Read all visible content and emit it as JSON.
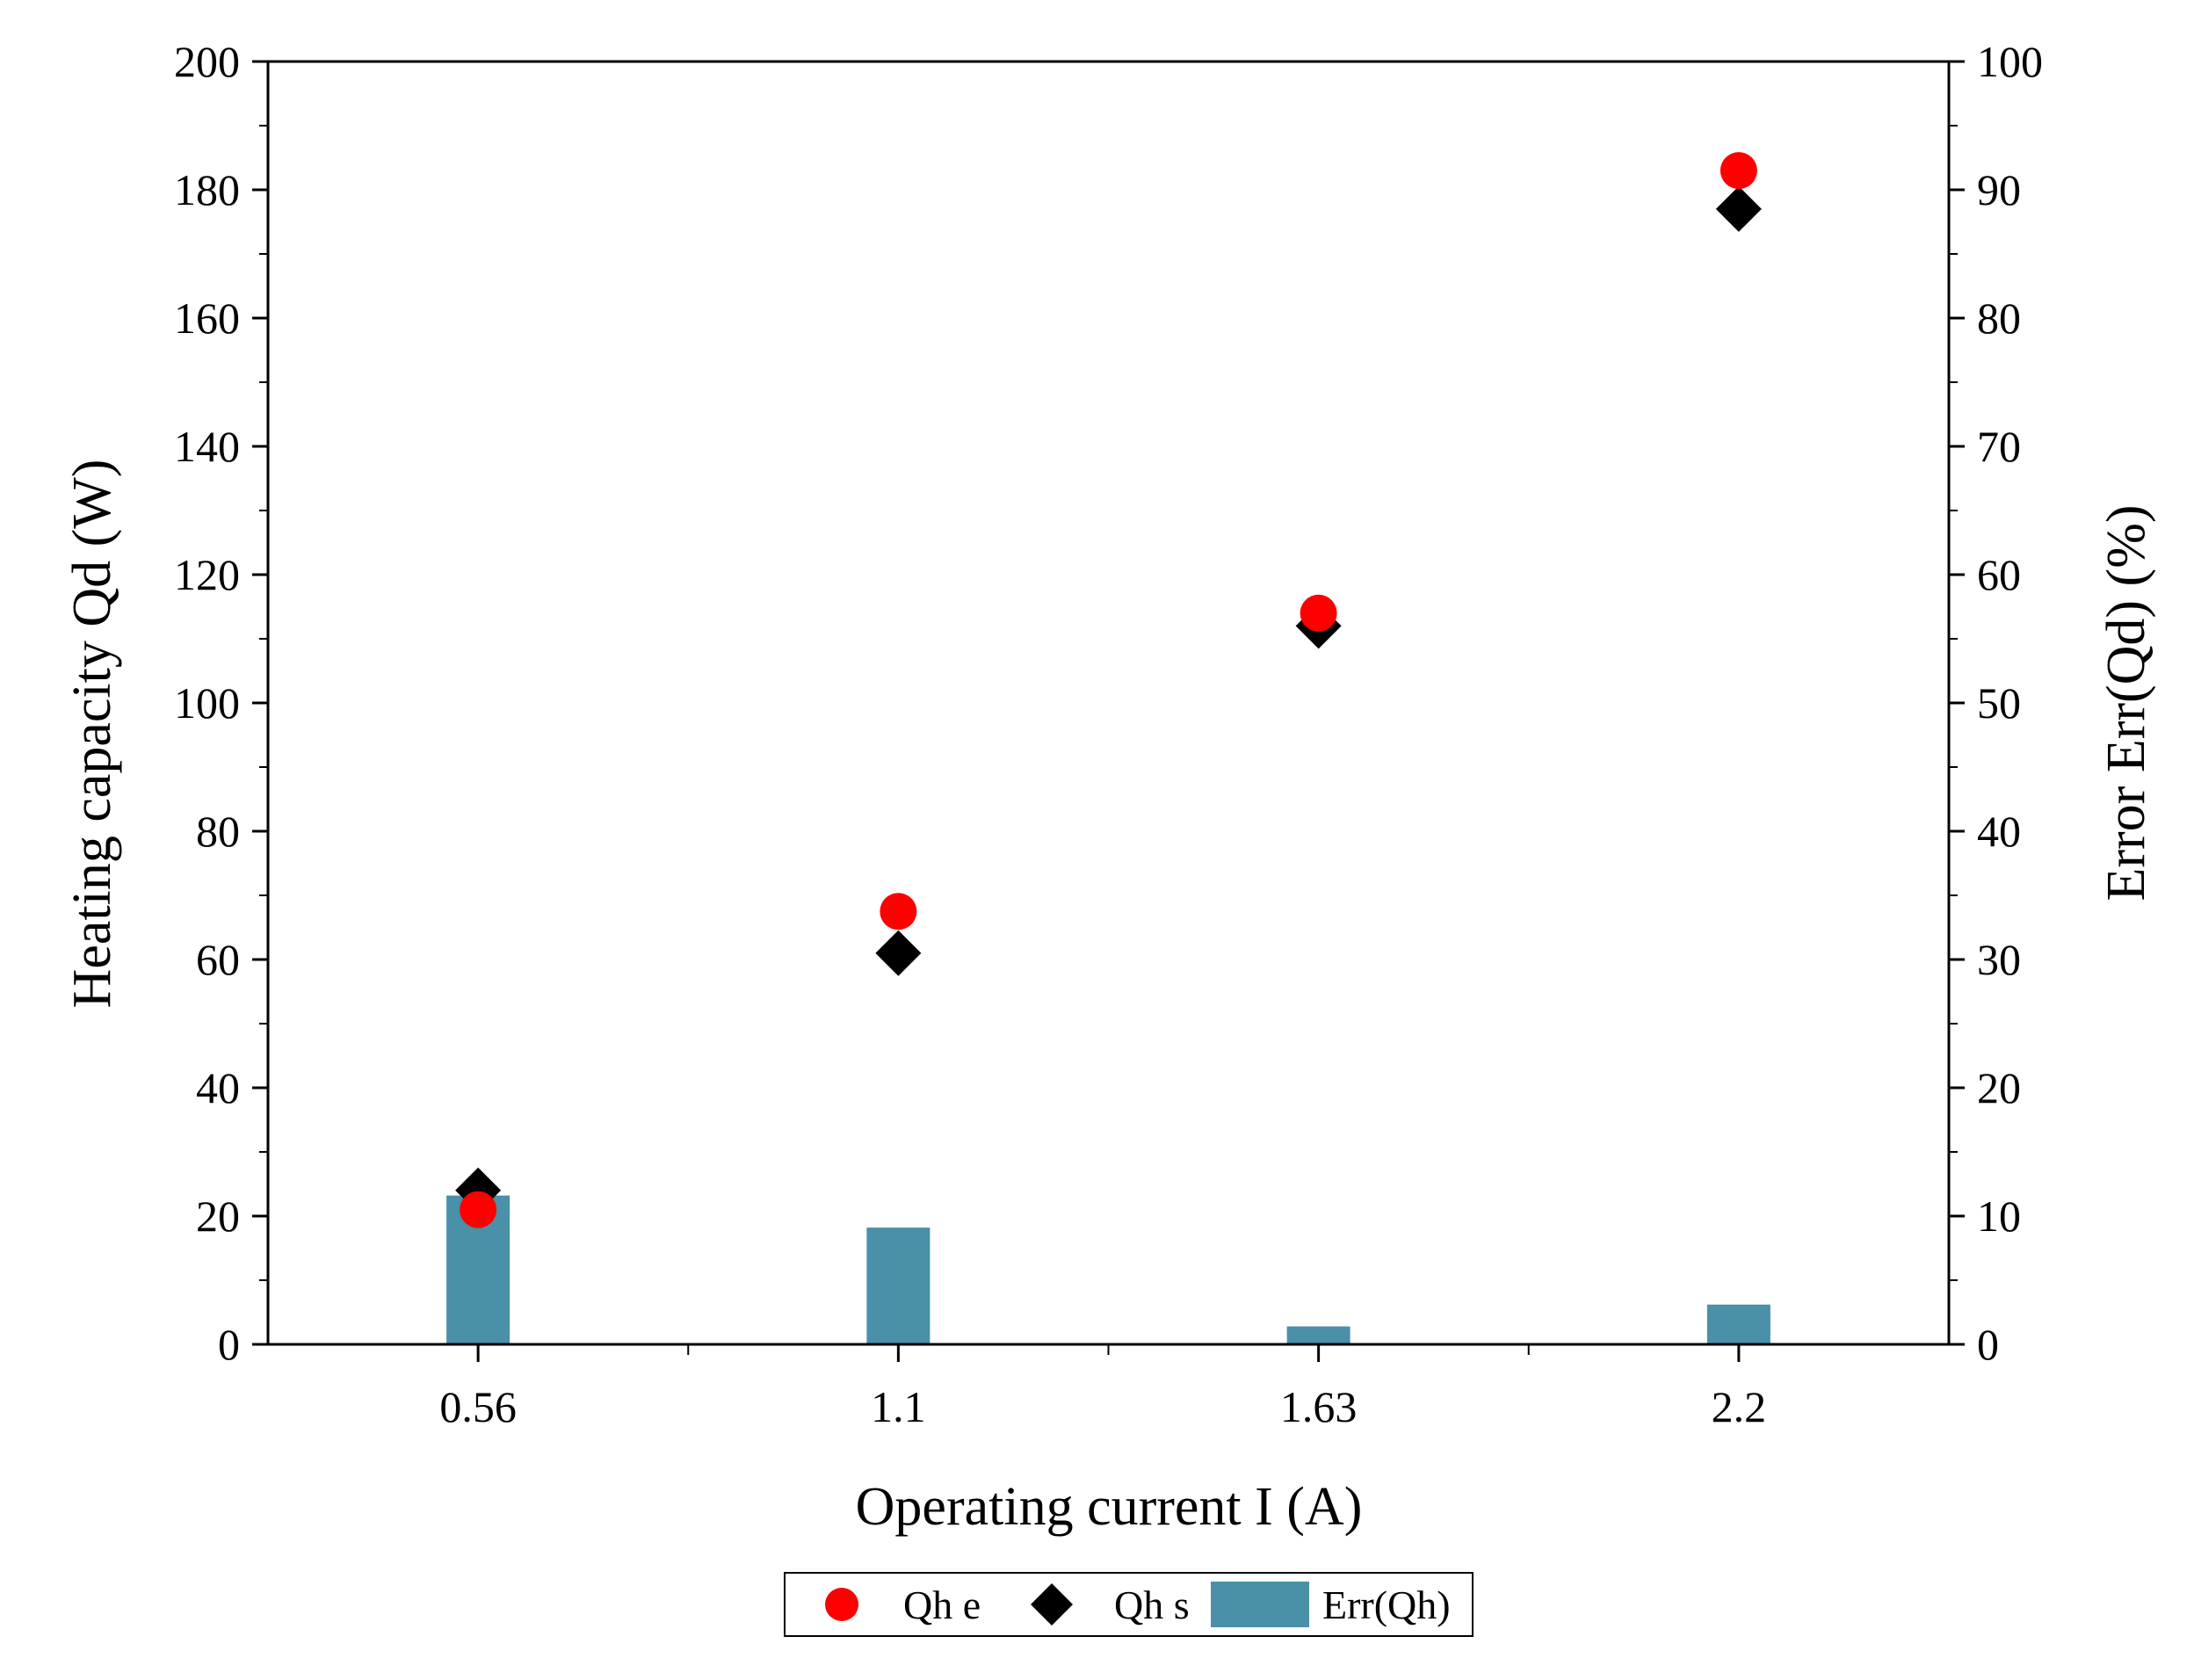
{
  "chart_data": {
    "type": "scatter",
    "categories": [
      "0.56",
      "1.1",
      "1.63",
      "2.2"
    ],
    "xlabel": "Operating current I (A)",
    "ylabel": "Heating capacity Qd (W)",
    "y2label": "Error Err(Qd) (%)",
    "ylim": [
      0,
      200
    ],
    "y2lim": [
      0,
      100
    ],
    "yticks": [
      "0",
      "20",
      "40",
      "60",
      "80",
      "100",
      "120",
      "140",
      "160",
      "180",
      "200"
    ],
    "y2ticks": [
      "0",
      "10",
      "20",
      "30",
      "40",
      "50",
      "60",
      "70",
      "80",
      "90",
      "100"
    ],
    "grid": false,
    "legend_position": "bottom",
    "series": [
      {
        "name": "Qh e",
        "marker": "circle",
        "color": "#ff0000",
        "axis": "left",
        "values": [
          21,
          67.5,
          114,
          183
        ]
      },
      {
        "name": "Qh s",
        "marker": "diamond",
        "color": "#000000",
        "axis": "left",
        "values": [
          24,
          61,
          112,
          177
        ]
      },
      {
        "name": "Err(Qh)",
        "marker": "bar",
        "color": "#4a90a8",
        "axis": "right",
        "values": [
          11.6,
          9.1,
          1.4,
          3.1
        ]
      }
    ]
  }
}
